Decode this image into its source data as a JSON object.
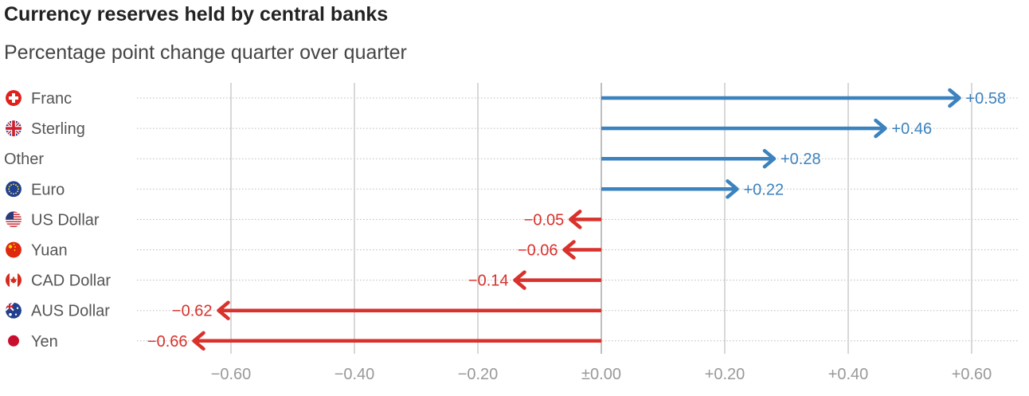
{
  "title": "Currency reserves held by central banks",
  "subtitle": "Percentage point change quarter over quarter",
  "colors": {
    "positive": "#3b82be",
    "negative": "#d9312b",
    "grid": "#cccccc",
    "dots": "#bbbbbb"
  },
  "chart_data": {
    "type": "bar",
    "orientation": "horizontal-arrows",
    "xlim": [
      -0.66,
      0.6
    ],
    "ticks": [
      {
        "value": -0.6,
        "label": "−0.60"
      },
      {
        "value": -0.4,
        "label": "−0.40"
      },
      {
        "value": -0.2,
        "label": "−0.20"
      },
      {
        "value": 0.0,
        "label": "±0.00"
      },
      {
        "value": 0.2,
        "label": "+0.20"
      },
      {
        "value": 0.4,
        "label": "+0.40"
      },
      {
        "value": 0.6,
        "label": "+0.60"
      }
    ],
    "categories": [
      {
        "name": "Franc",
        "icon": "swiss-flag-icon",
        "value": 0.58,
        "label": "+0.58"
      },
      {
        "name": "Sterling",
        "icon": "uk-flag-icon",
        "value": 0.46,
        "label": "+0.46"
      },
      {
        "name": "Other",
        "icon": "",
        "value": 0.28,
        "label": "+0.28"
      },
      {
        "name": "Euro",
        "icon": "eu-flag-icon",
        "value": 0.22,
        "label": "+0.22"
      },
      {
        "name": "US Dollar",
        "icon": "us-flag-icon",
        "value": -0.05,
        "label": "−0.05"
      },
      {
        "name": "Yuan",
        "icon": "china-flag-icon",
        "value": -0.06,
        "label": "−0.06"
      },
      {
        "name": "CAD Dollar",
        "icon": "canada-flag-icon",
        "value": -0.14,
        "label": "−0.14"
      },
      {
        "name": "AUS Dollar",
        "icon": "australia-flag-icon",
        "value": -0.62,
        "label": "−0.62"
      },
      {
        "name": "Yen",
        "icon": "japan-flag-icon",
        "value": -0.66,
        "label": "−0.66"
      }
    ]
  }
}
